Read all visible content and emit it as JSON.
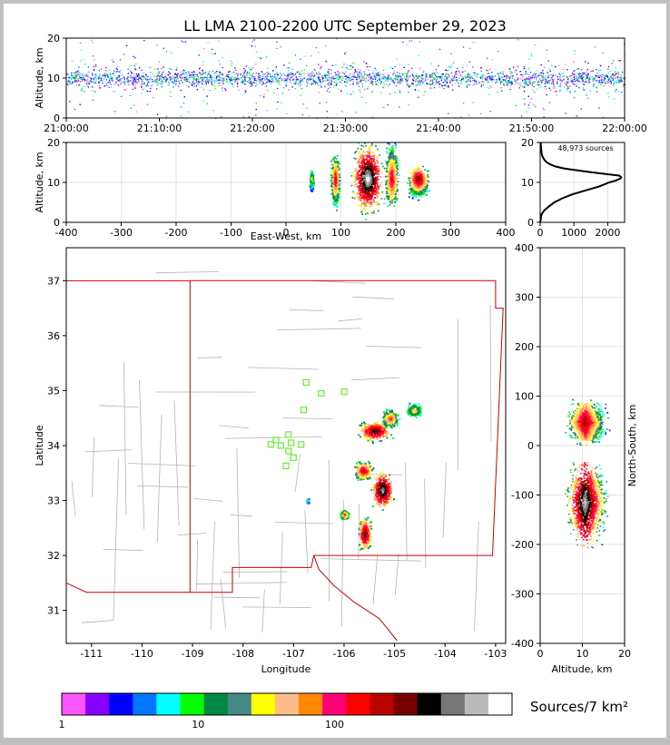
{
  "title": "LL LMA 2100-2200 UTC September 29, 2023",
  "colors": {
    "frame": "#c0c0c0",
    "map_lines": "#b4b4b4",
    "state_border": "#cc0000",
    "stations": "#66ee33",
    "colorbar": [
      "#ff55ff",
      "#8800ff",
      "#0000ff",
      "#0077ff",
      "#00ffff",
      "#00ff00",
      "#008844",
      "#448888",
      "#ffff00",
      "#ffbb88",
      "#ff8800",
      "#ff0077",
      "#ff0000",
      "#bb0000",
      "#770000",
      "#000000",
      "#777777",
      "#bbbbbb",
      "#ffffff"
    ]
  },
  "chart_data": [
    {
      "id": "time_height",
      "type": "scatter",
      "ylabel": "Altitude, km",
      "xlim": [
        "21:00:00",
        "22:00:00"
      ],
      "xticks": [
        "21:00:00",
        "21:10:00",
        "21:20:00",
        "21:30:00",
        "21:40:00",
        "21:50:00",
        "22:00:00"
      ],
      "ylim": [
        0,
        20
      ],
      "yticks": [
        0,
        10,
        20
      ],
      "density_band_km": [
        5,
        15
      ],
      "density_core_km": [
        8,
        12
      ]
    },
    {
      "id": "ew_altitude",
      "type": "heatmap",
      "xlabel": "East-West, km",
      "ylabel": "Altitude, km",
      "xlim": [
        -400,
        400
      ],
      "xticks": [
        -400,
        -300,
        -200,
        -100,
        0,
        100,
        200,
        300,
        400
      ],
      "ylim": [
        0,
        20
      ],
      "yticks": [
        0,
        10,
        20
      ],
      "grid": true,
      "clusters": [
        {
          "x": [
            42,
            50
          ],
          "z": [
            8,
            13
          ],
          "peak": 0.5
        },
        {
          "x": [
            80,
            98
          ],
          "z": [
            4,
            17
          ],
          "peak": 0.7
        },
        {
          "x": [
            118,
            178
          ],
          "z": [
            2,
            20
          ],
          "peak": 1.0
        },
        {
          "x": [
            178,
            205
          ],
          "z": [
            4,
            20
          ],
          "peak": 0.7
        },
        {
          "x": [
            220,
            260
          ],
          "z": [
            6,
            14
          ],
          "peak": 0.8
        }
      ]
    },
    {
      "id": "altitude_histogram",
      "type": "line",
      "annotation": "48,973 sources",
      "xlim": [
        0,
        2500
      ],
      "xticks": [
        0,
        1000,
        2000
      ],
      "ylim": [
        0,
        20
      ],
      "yticks": [
        0,
        10,
        20
      ],
      "grid": true,
      "x": [
        0,
        40,
        120,
        260,
        420,
        650,
        950,
        1350,
        1750,
        2050,
        2250,
        2380,
        2400,
        2340,
        2050,
        1550,
        1100,
        700,
        450,
        300,
        200,
        140,
        100,
        70,
        50,
        40,
        35,
        30,
        25,
        20,
        15
      ],
      "y": [
        0,
        2,
        3,
        4,
        5,
        6,
        7,
        8,
        9,
        10,
        10.5,
        11,
        11.3,
        11.7,
        12,
        12.5,
        13,
        13.5,
        14,
        14.5,
        15,
        15.5,
        16,
        16.5,
        17,
        17.5,
        18,
        18.5,
        19,
        19.5,
        20
      ]
    },
    {
      "id": "plan_view",
      "type": "heatmap",
      "xlabel": "Longitude",
      "ylabel": "Latitude",
      "xlim": [
        -111.5,
        -102.8
      ],
      "xticks": [
        -111,
        -110,
        -109,
        -108,
        -107,
        -106,
        -105,
        -104,
        -103
      ],
      "ylim": [
        30.4,
        37.6
      ],
      "yticks": [
        31,
        32,
        33,
        34,
        35,
        36,
        37
      ],
      "stations": [
        {
          "lon": -106.75,
          "lat": 35.15
        },
        {
          "lon": -106.45,
          "lat": 34.95
        },
        {
          "lon": -106.0,
          "lat": 34.98
        },
        {
          "lon": -106.8,
          "lat": 34.65
        },
        {
          "lon": -107.1,
          "lat": 34.2
        },
        {
          "lon": -107.35,
          "lat": 34.1
        },
        {
          "lon": -107.45,
          "lat": 34.02
        },
        {
          "lon": -107.25,
          "lat": 34.0
        },
        {
          "lon": -107.05,
          "lat": 34.05
        },
        {
          "lon": -106.85,
          "lat": 34.02
        },
        {
          "lon": -107.1,
          "lat": 33.9
        },
        {
          "lon": -107.0,
          "lat": 33.78
        },
        {
          "lon": -107.15,
          "lat": 33.63
        }
      ],
      "cells": [
        {
          "lon": [
            -105.8,
            -105.0
          ],
          "lat": [
            34.05,
            34.5
          ],
          "peak": 0.8
        },
        {
          "lon": [
            -105.3,
            -104.9
          ],
          "lat": [
            34.3,
            34.7
          ],
          "peak": 0.6
        },
        {
          "lon": [
            -104.8,
            -104.45
          ],
          "lat": [
            34.5,
            34.8
          ],
          "peak": 0.5
        },
        {
          "lon": [
            -105.85,
            -105.4
          ],
          "lat": [
            33.35,
            33.75
          ],
          "peak": 0.7
        },
        {
          "lon": [
            -105.5,
            -105.0
          ],
          "lat": [
            32.8,
            33.6
          ],
          "peak": 0.9
        },
        {
          "lon": [
            -106.1,
            -105.9
          ],
          "lat": [
            32.65,
            32.85
          ],
          "peak": 0.6
        },
        {
          "lon": [
            -105.75,
            -105.45
          ],
          "lat": [
            32.05,
            32.75
          ],
          "peak": 0.8
        },
        {
          "lon": [
            -106.75,
            -106.7
          ],
          "lat": [
            32.95,
            33.05
          ],
          "peak": 0.3
        }
      ]
    },
    {
      "id": "ns_altitude",
      "type": "heatmap",
      "xlabel": "Altitude, km",
      "ylabel": "North-South, km",
      "xlim": [
        0,
        20
      ],
      "xticks": [
        0,
        10,
        20
      ],
      "ylim": [
        -400,
        400
      ],
      "yticks": [
        400,
        300,
        200,
        100,
        0,
        -100,
        -200,
        -300,
        -400
      ],
      "grid": true,
      "clusters": [
        {
          "y": [
            0,
            95
          ],
          "z": [
            1,
            20
          ],
          "peak": 0.8
        },
        {
          "y": [
            -205,
            -25
          ],
          "z": [
            1,
            20
          ],
          "peak": 1.0
        }
      ]
    },
    {
      "id": "colorbar",
      "type": "colorbar",
      "label": "Sources/7 km²",
      "tick_labels": [
        "1",
        "10",
        "100"
      ],
      "tick_values": [
        1,
        10,
        100
      ],
      "range": [
        1,
        2000
      ]
    }
  ]
}
